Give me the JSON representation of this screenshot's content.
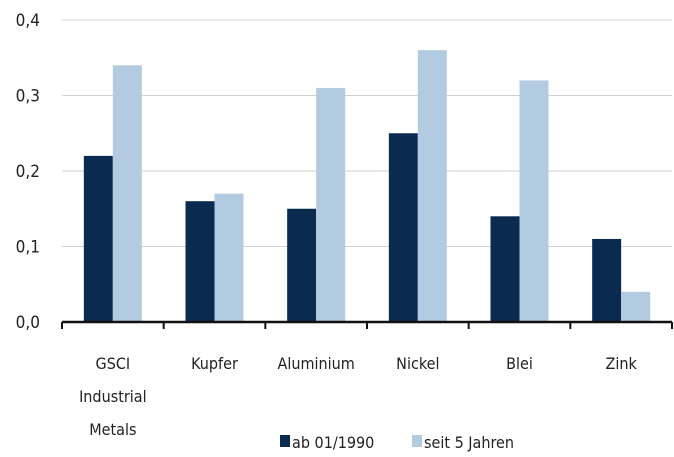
{
  "chart_data": {
    "type": "bar",
    "categories": [
      [
        "GSCI",
        "Industrial",
        "Metals"
      ],
      [
        "Kupfer"
      ],
      [
        "Aluminium"
      ],
      [
        "Nickel"
      ],
      [
        "Blei"
      ],
      [
        "Zink"
      ]
    ],
    "series": [
      {
        "name": "ab 01/1990",
        "color": "#0b2a4f",
        "values": [
          0.22,
          0.16,
          0.15,
          0.25,
          0.14,
          0.11
        ]
      },
      {
        "name": "seit 5 Jahren",
        "color": "#b3cbe0",
        "values": [
          0.34,
          0.17,
          0.31,
          0.36,
          0.32,
          0.04
        ]
      }
    ],
    "y_ticks": [
      "0,0",
      "0,1",
      "0,2",
      "0,3",
      "0,4"
    ],
    "ylim": [
      0,
      0.4
    ],
    "grid": "horizontal",
    "legend_position": "bottom"
  }
}
